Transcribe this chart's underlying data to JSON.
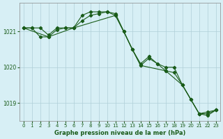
{
  "title": "Graphe pression niveau de la mer (hPa)",
  "background_color": "#d7eff5",
  "grid_color": "#b0cfd8",
  "line_color": "#1a5c1a",
  "xlim": [
    0,
    23
  ],
  "ylim": [
    1018.5,
    1021.8
  ],
  "yticks": [
    1019,
    1020,
    1021
  ],
  "xticks": [
    0,
    1,
    2,
    3,
    4,
    5,
    6,
    7,
    8,
    9,
    10,
    11,
    12,
    13,
    14,
    15,
    16,
    17,
    18,
    19,
    20,
    21,
    22,
    23
  ],
  "series": [
    {
      "x": [
        0,
        1,
        2,
        3,
        4,
        5,
        6,
        7,
        8,
        9,
        10,
        11,
        12,
        13,
        14,
        15,
        16,
        17,
        18,
        19,
        20,
        21,
        22,
        23
      ],
      "y": [
        1021.1,
        1021.1,
        1021.1,
        1020.9,
        1021.1,
        1021.1,
        1021.1,
        1021.45,
        1021.55,
        1021.55,
        1021.55,
        1021.5,
        1021.0,
        1020.5,
        1020.1,
        1020.3,
        1020.1,
        1020.0,
        1020.0,
        1019.5,
        1019.1,
        1018.7,
        1018.75,
        1018.8
      ]
    },
    {
      "x": [
        0,
        1,
        2,
        3,
        4,
        5,
        6,
        7,
        8,
        9,
        10,
        11,
        12,
        13,
        14,
        15,
        16,
        17,
        18,
        19,
        20,
        21,
        22,
        23
      ],
      "y": [
        1021.1,
        1021.1,
        1020.85,
        1020.85,
        1021.05,
        1021.1,
        1021.1,
        1021.3,
        1021.45,
        1021.5,
        1021.55,
        1021.45,
        1021.0,
        1020.5,
        1020.05,
        1020.25,
        1020.1,
        1019.9,
        1019.85,
        1019.5,
        1019.1,
        1018.7,
        1018.7,
        1018.8
      ]
    },
    {
      "x": [
        0,
        3,
        6,
        11,
        14,
        17,
        19,
        21,
        22,
        23
      ],
      "y": [
        1021.1,
        1020.85,
        1021.1,
        1021.45,
        1020.05,
        1019.9,
        1019.5,
        1018.7,
        1018.65,
        1018.8
      ]
    }
  ]
}
